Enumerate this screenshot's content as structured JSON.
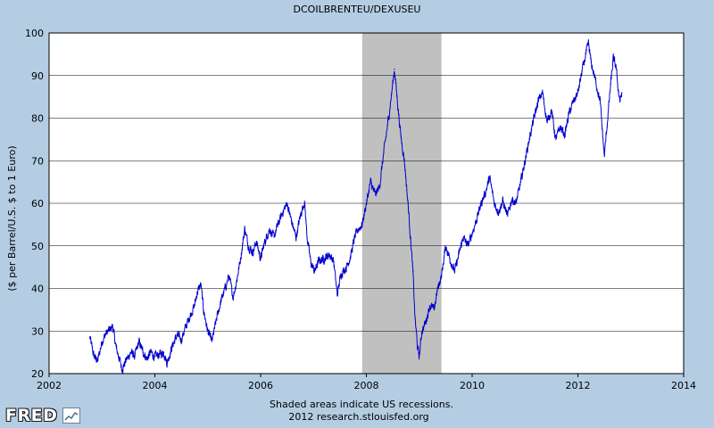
{
  "colors": {
    "background": "#b4cde3",
    "plot_background": "#ffffff",
    "grid": "#000000",
    "recession": "#c0c0c0",
    "series_line": "#0000cc",
    "text": "#000000"
  },
  "branding": {
    "logo_text": "FRED",
    "logo_icon": "line-chart-icon"
  },
  "chart_data": {
    "type": "line",
    "title": "DCOILBRENTEU/DEXUSEU",
    "xlabel": "",
    "ylabel": "($ per Barrel/U.S. $ to  1 Euro)",
    "xlim": [
      2002,
      2014
    ],
    "ylim": [
      20,
      100
    ],
    "xticks": [
      "2002",
      "2004",
      "2006",
      "2008",
      "2010",
      "2012",
      "2014"
    ],
    "yticks": [
      "20",
      "30",
      "40",
      "50",
      "60",
      "70",
      "80",
      "90",
      "100"
    ],
    "grid": true,
    "recessions": [
      {
        "start": 2007.92,
        "end": 2009.42
      }
    ],
    "footnote_line1": "Shaded areas indicate US recessions.",
    "footnote_line2": "2012 research.stlouisfed.org",
    "series": [
      {
        "name": "DCOILBRENTEU/DEXUSEU",
        "points": [
          [
            2002.77,
            28.5
          ],
          [
            2002.85,
            24.0
          ],
          [
            2002.92,
            23.0
          ],
          [
            2003.0,
            27.5
          ],
          [
            2003.08,
            29.5
          ],
          [
            2003.17,
            30.5
          ],
          [
            2003.2,
            31.3
          ],
          [
            2003.27,
            26.0
          ],
          [
            2003.33,
            23.5
          ],
          [
            2003.38,
            21.0
          ],
          [
            2003.45,
            23.0
          ],
          [
            2003.55,
            25.0
          ],
          [
            2003.62,
            24.0
          ],
          [
            2003.7,
            27.5
          ],
          [
            2003.78,
            25.0
          ],
          [
            2003.85,
            23.5
          ],
          [
            2003.92,
            25.0
          ],
          [
            2004.0,
            24.0
          ],
          [
            2004.08,
            24.5
          ],
          [
            2004.17,
            25.0
          ],
          [
            2004.23,
            22.5
          ],
          [
            2004.33,
            26.5
          ],
          [
            2004.42,
            29.0
          ],
          [
            2004.5,
            28.0
          ],
          [
            2004.6,
            31.5
          ],
          [
            2004.68,
            34.0
          ],
          [
            2004.75,
            36.0
          ],
          [
            2004.8,
            39.0
          ],
          [
            2004.87,
            41.0
          ],
          [
            2004.92,
            35.0
          ],
          [
            2005.0,
            30.0
          ],
          [
            2005.08,
            27.5
          ],
          [
            2005.17,
            33.0
          ],
          [
            2005.25,
            37.0
          ],
          [
            2005.33,
            40.0
          ],
          [
            2005.4,
            43.0
          ],
          [
            2005.48,
            38.0
          ],
          [
            2005.55,
            42.0
          ],
          [
            2005.62,
            47.0
          ],
          [
            2005.7,
            54.0
          ],
          [
            2005.77,
            50.0
          ],
          [
            2005.85,
            48.5
          ],
          [
            2005.92,
            51.0
          ],
          [
            2006.0,
            47.0
          ],
          [
            2006.08,
            51.0
          ],
          [
            2006.17,
            54.0
          ],
          [
            2006.25,
            52.0
          ],
          [
            2006.33,
            55.0
          ],
          [
            2006.42,
            58.0
          ],
          [
            2006.5,
            60.0
          ],
          [
            2006.58,
            56.0
          ],
          [
            2006.67,
            52.0
          ],
          [
            2006.75,
            57.0
          ],
          [
            2006.83,
            60.5
          ],
          [
            2006.88,
            52.0
          ],
          [
            2006.95,
            46.0
          ],
          [
            2007.02,
            44.0
          ],
          [
            2007.1,
            46.5
          ],
          [
            2007.2,
            47.0
          ],
          [
            2007.3,
            48.0
          ],
          [
            2007.38,
            46.5
          ],
          [
            2007.45,
            38.5
          ],
          [
            2007.52,
            43.5
          ],
          [
            2007.62,
            45.0
          ],
          [
            2007.7,
            47.5
          ],
          [
            2007.78,
            52.0
          ],
          [
            2007.85,
            54.0
          ],
          [
            2007.92,
            55.0
          ],
          [
            2008.0,
            60.0
          ],
          [
            2008.08,
            65.0
          ],
          [
            2008.17,
            62.0
          ],
          [
            2008.25,
            64.0
          ],
          [
            2008.33,
            72.0
          ],
          [
            2008.42,
            80.0
          ],
          [
            2008.48,
            86.0
          ],
          [
            2008.53,
            91.5
          ],
          [
            2008.58,
            85.0
          ],
          [
            2008.65,
            76.0
          ],
          [
            2008.72,
            70.0
          ],
          [
            2008.8,
            58.0
          ],
          [
            2008.88,
            44.0
          ],
          [
            2008.92,
            33.0
          ],
          [
            2008.97,
            26.0
          ],
          [
            2009.0,
            24.0
          ],
          [
            2009.05,
            30.0
          ],
          [
            2009.12,
            32.0
          ],
          [
            2009.2,
            36.0
          ],
          [
            2009.28,
            35.0
          ],
          [
            2009.35,
            40.0
          ],
          [
            2009.42,
            43.0
          ],
          [
            2009.5,
            50.0
          ],
          [
            2009.58,
            47.0
          ],
          [
            2009.67,
            44.0
          ],
          [
            2009.75,
            48.0
          ],
          [
            2009.83,
            52.0
          ],
          [
            2009.92,
            50.0
          ],
          [
            2010.0,
            53.0
          ],
          [
            2010.08,
            56.0
          ],
          [
            2010.17,
            60.0
          ],
          [
            2010.25,
            62.5
          ],
          [
            2010.33,
            66.0
          ],
          [
            2010.42,
            60.0
          ],
          [
            2010.5,
            58.0
          ],
          [
            2010.58,
            60.5
          ],
          [
            2010.67,
            57.0
          ],
          [
            2010.75,
            61.0
          ],
          [
            2010.83,
            60.0
          ],
          [
            2010.92,
            65.0
          ],
          [
            2011.0,
            70.0
          ],
          [
            2011.08,
            75.0
          ],
          [
            2011.17,
            80.0
          ],
          [
            2011.25,
            84.0
          ],
          [
            2011.33,
            86.0
          ],
          [
            2011.42,
            79.0
          ],
          [
            2011.5,
            82.0
          ],
          [
            2011.58,
            75.0
          ],
          [
            2011.67,
            78.0
          ],
          [
            2011.75,
            76.0
          ],
          [
            2011.83,
            81.0
          ],
          [
            2011.92,
            84.0
          ],
          [
            2012.0,
            86.0
          ],
          [
            2012.08,
            91.0
          ],
          [
            2012.17,
            96.0
          ],
          [
            2012.2,
            97.5
          ],
          [
            2012.25,
            93.0
          ],
          [
            2012.33,
            89.0
          ],
          [
            2012.42,
            84.0
          ],
          [
            2012.5,
            71.0
          ],
          [
            2012.55,
            78.0
          ],
          [
            2012.62,
            88.0
          ],
          [
            2012.67,
            94.0
          ],
          [
            2012.72,
            92.0
          ],
          [
            2012.77,
            86.0
          ],
          [
            2012.8,
            84.0
          ],
          [
            2012.83,
            86.0
          ]
        ]
      }
    ]
  }
}
